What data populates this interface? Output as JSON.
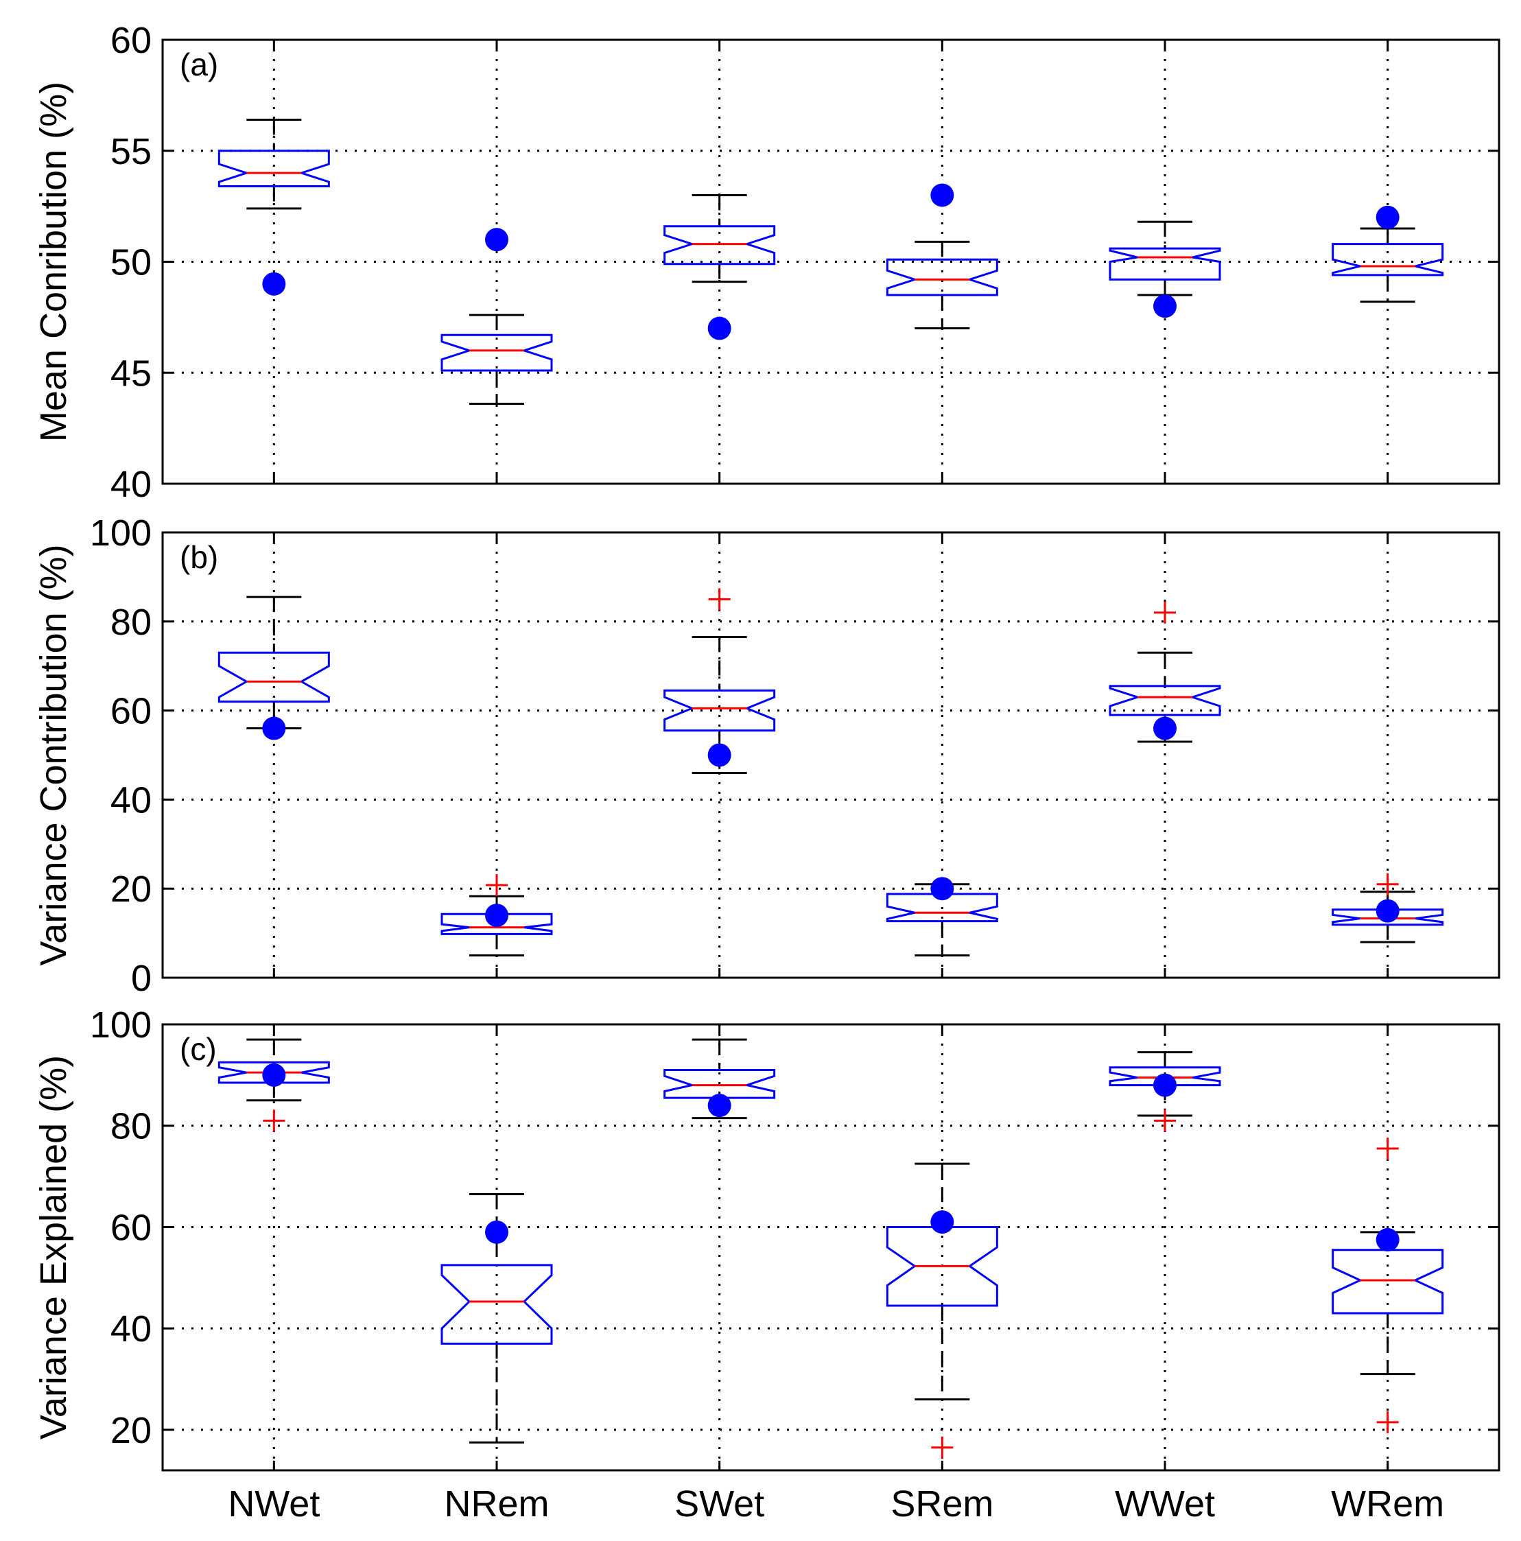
{
  "chart_data": [
    {
      "type": "boxplot",
      "panel_label": "(a)",
      "ylabel": "Mean Conribution (%)",
      "ylim": [
        40,
        60
      ],
      "yticks": [
        40,
        45,
        50,
        55,
        60
      ],
      "categories": [
        "NWet",
        "NRem",
        "SWet",
        "SRem",
        "WWet",
        "WRem"
      ],
      "grid": true,
      "boxes": [
        {
          "whisker_low": 52.4,
          "q1": 53.4,
          "median": 54.0,
          "q3": 55.0,
          "whisker_high": 56.4,
          "notch_low": 53.6,
          "notch_high": 54.4,
          "outliers": []
        },
        {
          "whisker_low": 43.6,
          "q1": 45.1,
          "median": 46.0,
          "q3": 46.7,
          "whisker_high": 47.6,
          "notch_low": 45.6,
          "notch_high": 46.4,
          "outliers": []
        },
        {
          "whisker_low": 49.1,
          "q1": 49.9,
          "median": 50.8,
          "q3": 51.6,
          "whisker_high": 53.0,
          "notch_low": 50.4,
          "notch_high": 51.2,
          "outliers": []
        },
        {
          "whisker_low": 47.0,
          "q1": 48.5,
          "median": 49.2,
          "q3": 50.1,
          "whisker_high": 50.9,
          "notch_low": 48.8,
          "notch_high": 49.6,
          "outliers": []
        },
        {
          "whisker_low": 48.5,
          "q1": 49.2,
          "median": 50.2,
          "q3": 50.6,
          "whisker_high": 51.8,
          "notch_low": 50.0,
          "notch_high": 50.5,
          "outliers": []
        },
        {
          "whisker_low": 48.2,
          "q1": 49.4,
          "median": 49.8,
          "q3": 50.8,
          "whisker_high": 51.5,
          "notch_low": 49.5,
          "notch_high": 50.1,
          "outliers": []
        }
      ],
      "markers": [
        49.0,
        51.0,
        47.0,
        53.0,
        48.0,
        52.0
      ]
    },
    {
      "type": "boxplot",
      "panel_label": "(b)",
      "ylabel": "Variance Contribution (%)",
      "ylim": [
        0,
        100
      ],
      "yticks": [
        0,
        20,
        40,
        60,
        80,
        100
      ],
      "categories": [
        "NWet",
        "NRem",
        "SWet",
        "SRem",
        "WWet",
        "WRem"
      ],
      "grid": true,
      "boxes": [
        {
          "whisker_low": 56.0,
          "q1": 62.0,
          "median": 66.5,
          "q3": 73.0,
          "whisker_high": 85.5,
          "notch_low": 63.0,
          "notch_high": 70.0,
          "outliers": []
        },
        {
          "whisker_low": 5.0,
          "q1": 9.8,
          "median": 11.3,
          "q3": 14.3,
          "whisker_high": 18.3,
          "notch_low": 10.5,
          "notch_high": 12.0,
          "outliers": [
            20.8
          ]
        },
        {
          "whisker_low": 46.0,
          "q1": 55.5,
          "median": 60.5,
          "q3": 64.5,
          "whisker_high": 76.5,
          "notch_low": 58.0,
          "notch_high": 63.0,
          "outliers": [
            85.0
          ]
        },
        {
          "whisker_low": 5.0,
          "q1": 12.7,
          "median": 14.6,
          "q3": 18.8,
          "whisker_high": 21.0,
          "notch_low": 13.2,
          "notch_high": 16.0,
          "outliers": []
        },
        {
          "whisker_low": 53.0,
          "q1": 59.0,
          "median": 63.0,
          "q3": 65.5,
          "whisker_high": 73.0,
          "notch_low": 61.0,
          "notch_high": 65.0,
          "outliers": [
            82.0
          ]
        },
        {
          "whisker_low": 8.0,
          "q1": 11.9,
          "median": 13.3,
          "q3": 15.3,
          "whisker_high": 19.3,
          "notch_low": 12.5,
          "notch_high": 14.1,
          "outliers": [
            21.0
          ]
        }
      ],
      "markers": [
        56.0,
        14.0,
        50.0,
        20.0,
        56.0,
        15.0
      ]
    },
    {
      "type": "boxplot",
      "panel_label": "(c)",
      "ylabel": "Variance Explained (%)",
      "ylim": [
        12,
        100
      ],
      "yticks": [
        20,
        40,
        60,
        80,
        100
      ],
      "categories": [
        "NWet",
        "NRem",
        "SWet",
        "SRem",
        "WWet",
        "WRem"
      ],
      "grid": true,
      "boxes": [
        {
          "whisker_low": 85.0,
          "q1": 88.5,
          "median": 90.5,
          "q3": 92.5,
          "whisker_high": 97.0,
          "notch_low": 89.5,
          "notch_high": 91.5,
          "outliers": [
            81.0
          ]
        },
        {
          "whisker_low": 17.5,
          "q1": 37.0,
          "median": 45.3,
          "q3": 52.5,
          "whisker_high": 66.5,
          "notch_low": 40.0,
          "notch_high": 50.5,
          "outliers": []
        },
        {
          "whisker_low": 81.5,
          "q1": 85.5,
          "median": 88.0,
          "q3": 91.0,
          "whisker_high": 97.0,
          "notch_low": 86.8,
          "notch_high": 89.8,
          "outliers": []
        },
        {
          "whisker_low": 26.0,
          "q1": 44.5,
          "median": 52.3,
          "q3": 60.0,
          "whisker_high": 72.5,
          "notch_low": 48.5,
          "notch_high": 56.0,
          "outliers": [
            16.5
          ]
        },
        {
          "whisker_low": 82.0,
          "q1": 88.0,
          "median": 89.5,
          "q3": 91.5,
          "whisker_high": 94.5,
          "notch_low": 88.8,
          "notch_high": 90.5,
          "outliers": [
            81.0
          ]
        },
        {
          "whisker_low": 31.0,
          "q1": 43.0,
          "median": 49.5,
          "q3": 55.5,
          "whisker_high": 59.0,
          "notch_low": 47.0,
          "notch_high": 52.0,
          "outliers": [
            21.5,
            75.5
          ]
        }
      ],
      "markers": [
        90.0,
        59.0,
        84.0,
        61.0,
        88.0,
        57.5
      ]
    }
  ],
  "colors": {
    "box": "#0000ff",
    "median": "#ff0000",
    "whisker": "#000000",
    "outlier": "#ff0000",
    "marker": "#0000ff",
    "grid": "#000000"
  }
}
